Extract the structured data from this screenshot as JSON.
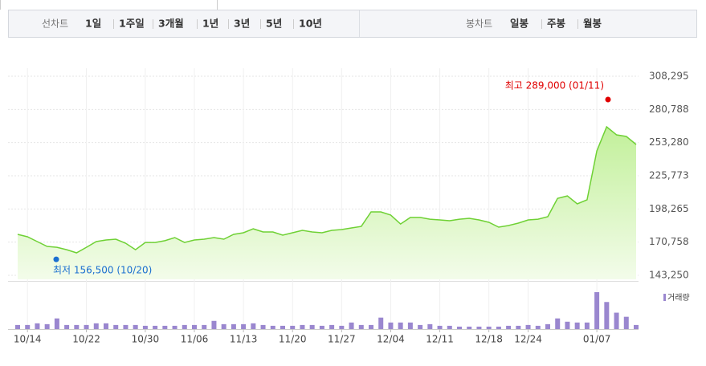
{
  "toolbar": {
    "line_label": "선차트",
    "periods": [
      "1일",
      "1주일",
      "3개월",
      "1년",
      "3년",
      "5년",
      "10년"
    ],
    "selected": 2,
    "candle_label": "봉차트",
    "candles": [
      "일봉",
      "주봉",
      "월봉"
    ]
  },
  "chart_data": {
    "type": "line",
    "categories": [
      null,
      "10/14",
      null,
      null,
      null,
      null,
      null,
      "10/22",
      null,
      null,
      null,
      null,
      null,
      "10/30",
      null,
      null,
      null,
      null,
      "11/06",
      null,
      null,
      null,
      null,
      "11/13",
      null,
      null,
      null,
      null,
      "11/20",
      null,
      null,
      null,
      null,
      "11/27",
      null,
      null,
      null,
      null,
      "12/04",
      null,
      null,
      null,
      null,
      "12/11",
      null,
      null,
      null,
      null,
      "12/18",
      null,
      null,
      null,
      "12/24",
      null,
      null,
      null,
      null,
      null,
      null,
      "01/07",
      null,
      null,
      null,
      null
    ],
    "series": [
      {
        "color": "#6fd135",
        "values": [
          177200,
          175200,
          171200,
          167200,
          166500,
          164500,
          161900,
          166500,
          171200,
          172500,
          173200,
          169900,
          164500,
          170500,
          170500,
          171900,
          174500,
          170500,
          172500,
          173200,
          174500,
          173200,
          177200,
          178500,
          181800,
          179200,
          179200,
          176500,
          178500,
          180500,
          179200,
          178500,
          180500,
          181200,
          182500,
          183800,
          195800,
          195800,
          193200,
          185800,
          191200,
          191200,
          189800,
          189200,
          188500,
          189800,
          190500,
          189200,
          187200,
          183200,
          184500,
          186500,
          189200,
          189800,
          191800,
          207100,
          209100,
          202500,
          205800,
          246400,
          266400,
          259700,
          258400,
          251700
        ]
      }
    ],
    "volume": {
      "name": "거래량",
      "color": "#9a87cf",
      "values": [
        5,
        5,
        7,
        6,
        13,
        5,
        5,
        5,
        7,
        7,
        5,
        5,
        5,
        4,
        4,
        4,
        4,
        5,
        5,
        5,
        10,
        6,
        6,
        6,
        7,
        5,
        4,
        4,
        4,
        5,
        5,
        4,
        5,
        4,
        8,
        5,
        5,
        14,
        8,
        8,
        8,
        5,
        6,
        4,
        4,
        3,
        3,
        3,
        3,
        3,
        4,
        4,
        5,
        4,
        6,
        13,
        9,
        8,
        8,
        45,
        33,
        20,
        15,
        5
      ]
    },
    "ylim": [
      143250,
      308295
    ],
    "yticks": [
      {
        "value": 143250,
        "label": "143,250"
      },
      {
        "value": 170758,
        "label": "170,758"
      },
      {
        "value": 198265,
        "label": "198,265"
      },
      {
        "value": 225773,
        "label": "225,773"
      },
      {
        "value": 253280,
        "label": "253,280"
      },
      {
        "value": 280788,
        "label": "280,788"
      },
      {
        "value": 308295,
        "label": "308,295"
      }
    ],
    "high": {
      "label": "최고 289,000 (01/11)",
      "value": 289000,
      "color": "#e00000"
    },
    "low": {
      "label": "최저 156,500 (10/20)",
      "value": 156500,
      "color": "#1a6fd0"
    },
    "grid": true
  }
}
